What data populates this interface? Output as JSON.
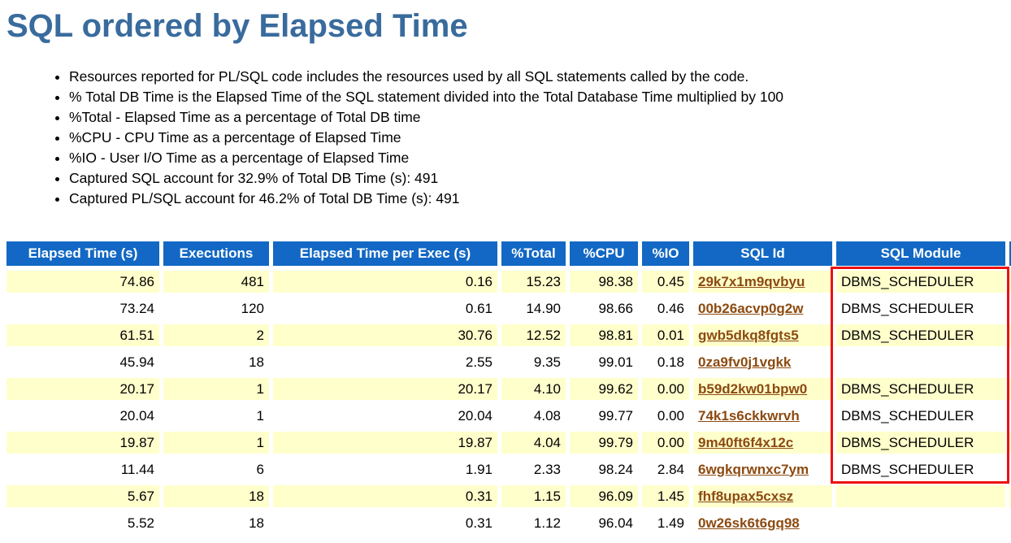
{
  "page": {
    "title": "SQL ordered by Elapsed Time"
  },
  "notes": [
    "Resources reported for PL/SQL code includes the resources used by all SQL statements called by the code.",
    "% Total DB Time is the Elapsed Time of the SQL statement divided into the Total Database Time multiplied by 100",
    "%Total - Elapsed Time as a percentage of Total DB time",
    "%CPU - CPU Time as a percentage of Elapsed Time",
    "%IO - User I/O Time as a percentage of Elapsed Time",
    "Captured SQL account for 32.9% of Total DB Time (s): 491",
    "Captured PL/SQL account for 46.2% of Total DB Time (s): 491"
  ],
  "table": {
    "headers": {
      "elapsed": "Elapsed Time (s)",
      "execs": "Executions",
      "per_exec": "Elapsed Time per Exec (s)",
      "pct_total": "%Total",
      "pct_cpu": "%CPU",
      "pct_io": "%IO",
      "sql_id": "SQL Id",
      "module": "SQL Module"
    },
    "rows": [
      {
        "elapsed": "74.86",
        "execs": "481",
        "per_exec": "0.16",
        "pct_total": "15.23",
        "pct_cpu": "98.38",
        "pct_io": "0.45",
        "sql_id": "29k7x1m9qvbyu",
        "module": "DBMS_SCHEDULER"
      },
      {
        "elapsed": "73.24",
        "execs": "120",
        "per_exec": "0.61",
        "pct_total": "14.90",
        "pct_cpu": "98.66",
        "pct_io": "0.46",
        "sql_id": "00b26acvp0g2w",
        "module": "DBMS_SCHEDULER"
      },
      {
        "elapsed": "61.51",
        "execs": "2",
        "per_exec": "30.76",
        "pct_total": "12.52",
        "pct_cpu": "98.81",
        "pct_io": "0.01",
        "sql_id": "gwb5dkq8fgts5",
        "module": "DBMS_SCHEDULER"
      },
      {
        "elapsed": "45.94",
        "execs": "18",
        "per_exec": "2.55",
        "pct_total": "9.35",
        "pct_cpu": "99.01",
        "pct_io": "0.18",
        "sql_id": "0za9fv0j1vgkk",
        "module": ""
      },
      {
        "elapsed": "20.17",
        "execs": "1",
        "per_exec": "20.17",
        "pct_total": "4.10",
        "pct_cpu": "99.62",
        "pct_io": "0.00",
        "sql_id": "b59d2kw01bpw0",
        "module": "DBMS_SCHEDULER"
      },
      {
        "elapsed": "20.04",
        "execs": "1",
        "per_exec": "20.04",
        "pct_total": "4.08",
        "pct_cpu": "99.77",
        "pct_io": "0.00",
        "sql_id": "74k1s6ckkwrvh",
        "module": "DBMS_SCHEDULER"
      },
      {
        "elapsed": "19.87",
        "execs": "1",
        "per_exec": "19.87",
        "pct_total": "4.04",
        "pct_cpu": "99.79",
        "pct_io": "0.00",
        "sql_id": "9m40ft6f4x12c",
        "module": "DBMS_SCHEDULER"
      },
      {
        "elapsed": "11.44",
        "execs": "6",
        "per_exec": "1.91",
        "pct_total": "2.33",
        "pct_cpu": "98.24",
        "pct_io": "2.84",
        "sql_id": "6wgkqrwnxc7ym",
        "module": "DBMS_SCHEDULER"
      },
      {
        "elapsed": "5.67",
        "execs": "18",
        "per_exec": "0.31",
        "pct_total": "1.15",
        "pct_cpu": "96.09",
        "pct_io": "1.45",
        "sql_id": "fhf8upax5cxsz",
        "module": ""
      },
      {
        "elapsed": "5.52",
        "execs": "18",
        "per_exec": "0.31",
        "pct_total": "1.12",
        "pct_cpu": "96.04",
        "pct_io": "1.49",
        "sql_id": "0w26sk6t6gq98",
        "module": ""
      }
    ]
  },
  "annotation": {
    "highlighted_column": "SQL Module",
    "highlighted_rows": "1-8"
  },
  "colors": {
    "title": "#396b9d",
    "header_bg": "#1268c4",
    "header_text": "#ffffff",
    "row_alt_bg": "#ffffcc",
    "link": "#8c4a10",
    "highlight": "#ee1111"
  }
}
